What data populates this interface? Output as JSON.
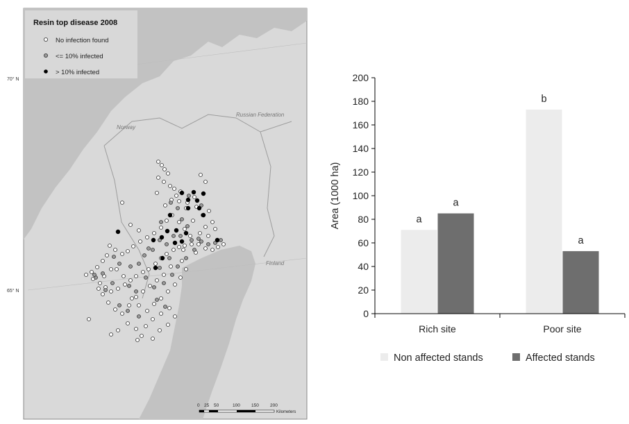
{
  "map": {
    "title": "Resin top disease 2008",
    "legend": [
      {
        "label": "No infection found",
        "class": "none"
      },
      {
        "label": "<= 10% infected",
        "class": "low"
      },
      {
        "label": "> 10% infected",
        "class": "high"
      }
    ],
    "lat_labels": [
      "70° N",
      "65° N"
    ],
    "country_labels": [
      "Norway",
      "Russian Federation",
      "Finland"
    ],
    "scale_ticks": [
      "0",
      "25",
      "50",
      "100",
      "150",
      "200"
    ],
    "scale_unit": "Kilometers",
    "colors": {
      "land": "#d9d9d9",
      "sea": "#c2c2c2",
      "none": "#ffffff",
      "low": "#9a9a9a",
      "high": "#000000"
    }
  },
  "chart_data": {
    "type": "bar",
    "categories": [
      "Rich site",
      "Poor site"
    ],
    "series": [
      {
        "name": "Non affected stands",
        "values": [
          71,
          173
        ],
        "labels": [
          "a",
          "b"
        ],
        "color": "#ececec"
      },
      {
        "name": "Affected stands",
        "values": [
          85,
          53
        ],
        "labels": [
          "a",
          "a"
        ],
        "color": "#6e6e6e"
      }
    ],
    "ylabel": "Area (1000 ha)",
    "ylim": [
      0,
      200
    ],
    "yticks": [
      "0",
      "20",
      "40",
      "60",
      "80",
      "100",
      "120",
      "140",
      "160",
      "180",
      "200"
    ],
    "grid": false,
    "legend_position": "bottom"
  }
}
